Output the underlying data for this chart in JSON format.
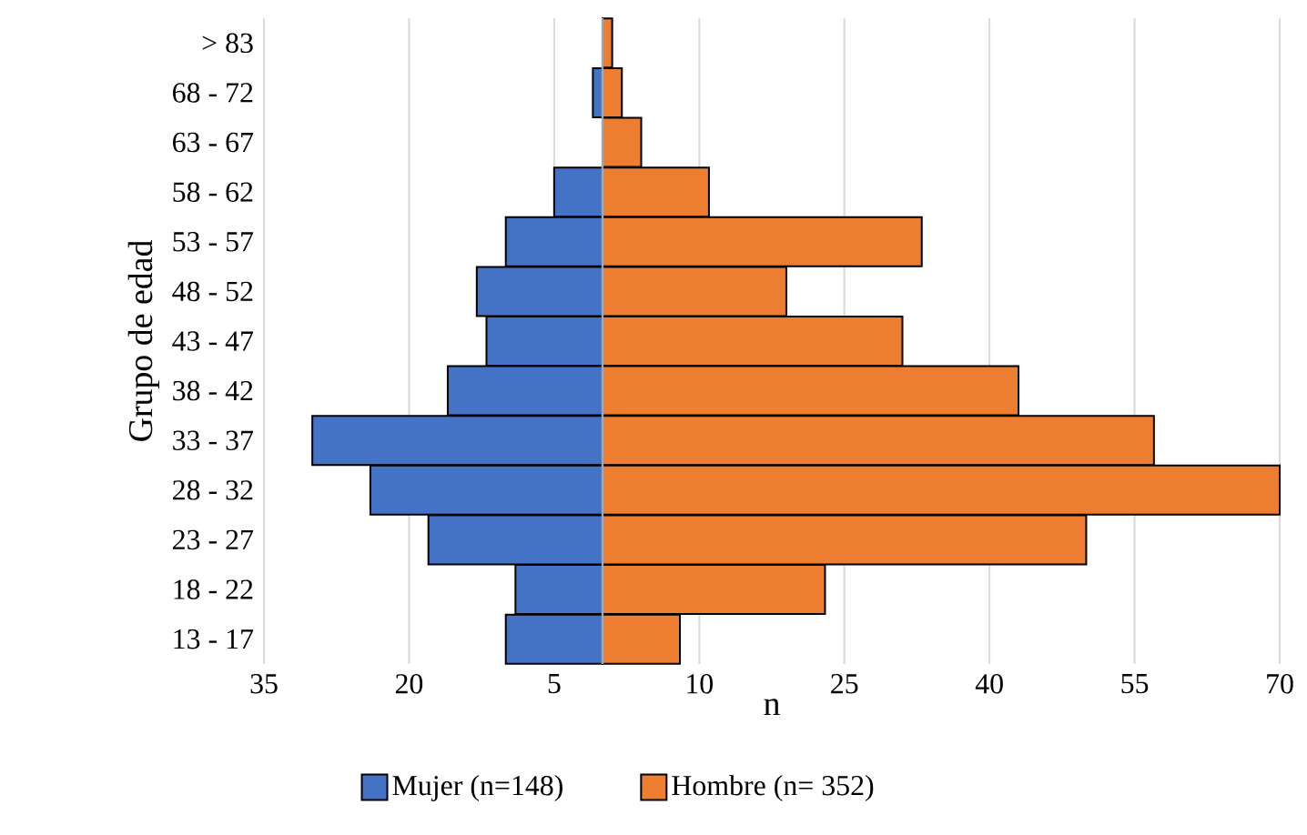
{
  "chart_data": {
    "type": "bar",
    "orientation": "horizontal",
    "xlabel": "n",
    "ylabel": "Grupo de edad",
    "categories": [
      "> 83",
      "68 - 72",
      "63 - 67",
      "58 - 62",
      "53 - 57",
      "48 - 52",
      "43 - 47",
      "38 - 42",
      "33 - 37",
      "28 - 32",
      "23 - 27",
      "18 - 22",
      "13 - 17"
    ],
    "series": [
      {
        "name": "Mujer (n=148)",
        "color": "#4472c4",
        "values": [
          0,
          -1,
          0,
          -5,
          -10,
          -13,
          -12,
          -16,
          -30,
          -24,
          -18,
          -9,
          -10
        ]
      },
      {
        "name": "Hombre (n= 352)",
        "color": "#ed7d31",
        "values": [
          1,
          2,
          4,
          11,
          33,
          19,
          31,
          43,
          57,
          70,
          50,
          23,
          8
        ]
      }
    ],
    "xlim": [
      -35,
      70
    ],
    "xticks": [
      {
        "value": -35,
        "label": "35"
      },
      {
        "value": -20,
        "label": "20"
      },
      {
        "value": -5,
        "label": "5"
      },
      10,
      25,
      40,
      55,
      70
    ],
    "grid": "x",
    "legend": "bottom",
    "stacked": true
  }
}
